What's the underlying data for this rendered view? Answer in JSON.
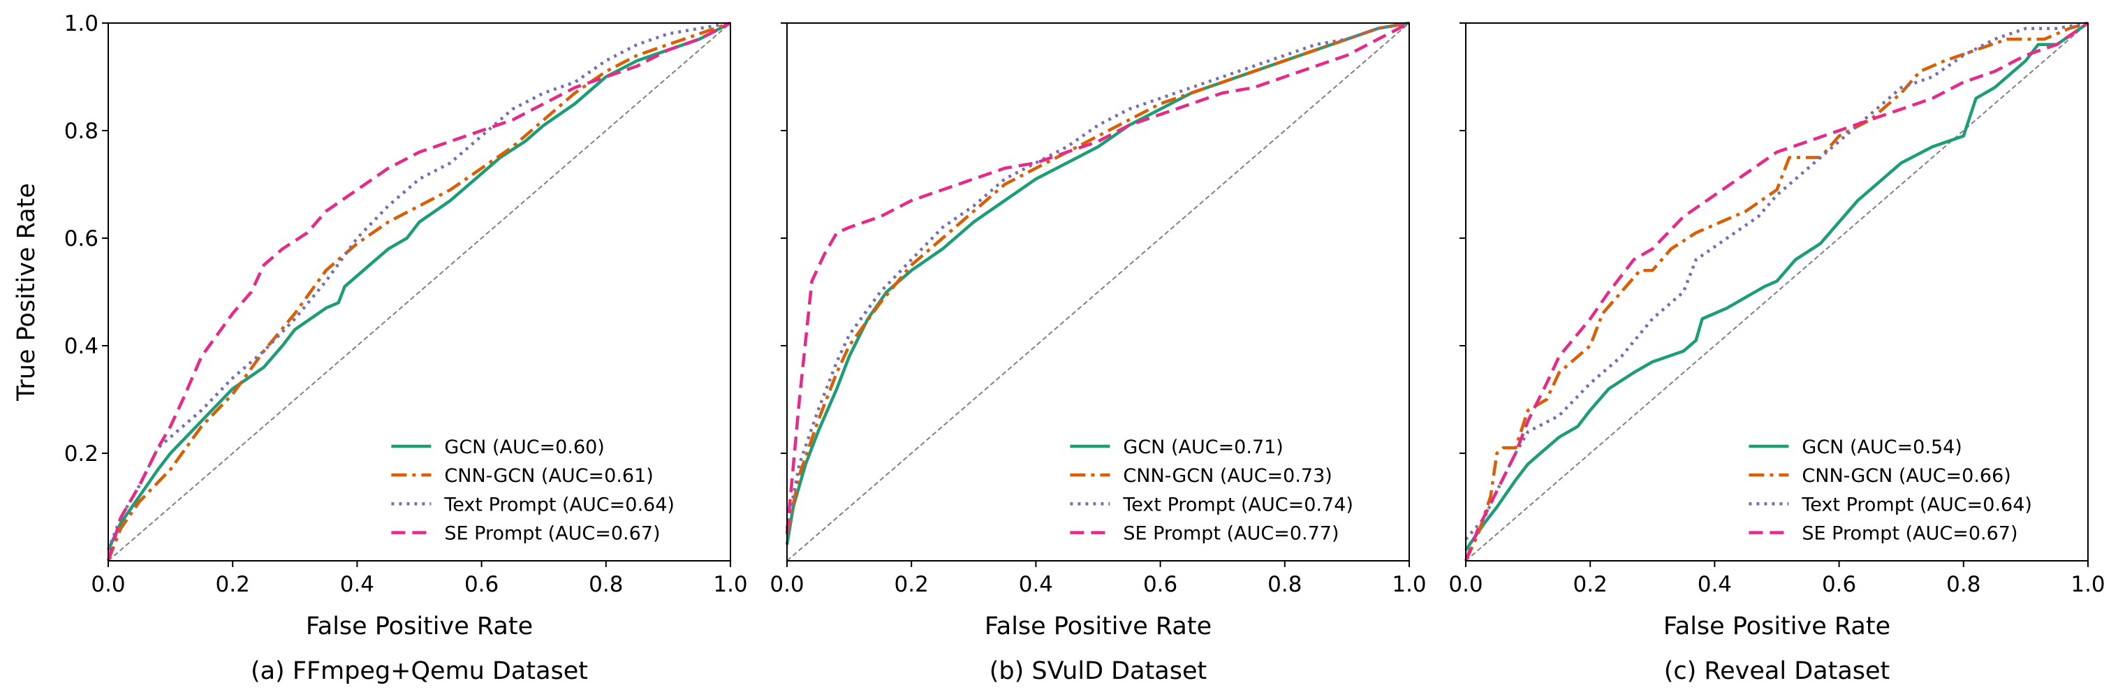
{
  "chart_data": [
    {
      "type": "line",
      "caption": "(a) FFmpeg+Qemu Dataset",
      "xlabel": "False Positive Rate",
      "ylabel": "True Positive Rate",
      "xlim": [
        0,
        1
      ],
      "ylim": [
        0,
        1
      ],
      "xticks": [
        "0.0",
        "0.2",
        "0.4",
        "0.6",
        "0.8",
        "1.0"
      ],
      "yticks": [
        "0.2",
        "0.4",
        "0.6",
        "0.8",
        "1.0"
      ],
      "show_ytick_labels": true,
      "legend_position": "lower-right",
      "series": [
        {
          "name": "GCN (AUC=0.60)",
          "color": "#1b9e77",
          "style": "solid",
          "x": [
            0,
            0.02,
            0.05,
            0.08,
            0.1,
            0.15,
            0.2,
            0.25,
            0.28,
            0.3,
            0.35,
            0.37,
            0.38,
            0.42,
            0.45,
            0.48,
            0.5,
            0.55,
            0.6,
            0.63,
            0.67,
            0.7,
            0.75,
            0.8,
            0.85,
            0.9,
            0.95,
            1
          ],
          "y": [
            0.02,
            0.07,
            0.12,
            0.17,
            0.2,
            0.26,
            0.32,
            0.36,
            0.4,
            0.43,
            0.47,
            0.48,
            0.51,
            0.55,
            0.58,
            0.6,
            0.63,
            0.67,
            0.72,
            0.75,
            0.78,
            0.81,
            0.85,
            0.9,
            0.93,
            0.95,
            0.97,
            1
          ]
        },
        {
          "name": "CNN-GCN (AUC=0.61)",
          "color": "#d95f02",
          "style": "dashdot",
          "x": [
            0,
            0.02,
            0.05,
            0.1,
            0.15,
            0.2,
            0.25,
            0.3,
            0.35,
            0.4,
            0.45,
            0.5,
            0.55,
            0.6,
            0.65,
            0.7,
            0.75,
            0.8,
            0.85,
            0.9,
            0.95,
            1
          ],
          "y": [
            0,
            0.06,
            0.11,
            0.17,
            0.25,
            0.31,
            0.39,
            0.46,
            0.54,
            0.59,
            0.63,
            0.66,
            0.69,
            0.73,
            0.77,
            0.82,
            0.87,
            0.91,
            0.94,
            0.96,
            0.98,
            1
          ]
        },
        {
          "name": "Text Prompt (AUC=0.64)",
          "color": "#7570b3",
          "style": "dotted",
          "x": [
            0,
            0.02,
            0.05,
            0.08,
            0.1,
            0.15,
            0.2,
            0.25,
            0.3,
            0.35,
            0.4,
            0.45,
            0.5,
            0.55,
            0.6,
            0.65,
            0.7,
            0.75,
            0.8,
            0.85,
            0.9,
            0.95,
            1
          ],
          "y": [
            0.02,
            0.08,
            0.14,
            0.21,
            0.23,
            0.28,
            0.34,
            0.39,
            0.45,
            0.52,
            0.6,
            0.66,
            0.71,
            0.74,
            0.79,
            0.84,
            0.87,
            0.89,
            0.93,
            0.96,
            0.98,
            0.99,
            1
          ]
        },
        {
          "name": "SE Prompt (AUC=0.67)",
          "color": "#e7298a",
          "style": "dashed",
          "x": [
            0,
            0.02,
            0.05,
            0.08,
            0.1,
            0.12,
            0.15,
            0.2,
            0.23,
            0.25,
            0.28,
            0.32,
            0.35,
            0.4,
            0.45,
            0.5,
            0.55,
            0.6,
            0.65,
            0.7,
            0.75,
            0.8,
            0.85,
            0.9,
            0.95,
            1
          ],
          "y": [
            0,
            0.08,
            0.14,
            0.21,
            0.25,
            0.3,
            0.38,
            0.46,
            0.5,
            0.55,
            0.58,
            0.61,
            0.65,
            0.69,
            0.73,
            0.76,
            0.78,
            0.8,
            0.82,
            0.85,
            0.88,
            0.9,
            0.92,
            0.95,
            0.97,
            1
          ]
        }
      ]
    },
    {
      "type": "line",
      "caption": "(b) SVulD Dataset",
      "xlabel": "False Positive Rate",
      "xlim": [
        0,
        1
      ],
      "ylim": [
        0,
        1
      ],
      "xticks": [
        "0.0",
        "0.2",
        "0.4",
        "0.6",
        "0.8",
        "1.0"
      ],
      "show_ytick_labels": false,
      "legend_position": "lower-right",
      "series": [
        {
          "name": "GCN (AUC=0.71)",
          "color": "#1b9e77",
          "style": "solid",
          "x": [
            0,
            0.01,
            0.03,
            0.05,
            0.08,
            0.1,
            0.13,
            0.16,
            0.2,
            0.25,
            0.3,
            0.35,
            0.4,
            0.45,
            0.5,
            0.55,
            0.6,
            0.65,
            0.7,
            0.75,
            0.8,
            0.85,
            0.9,
            0.95,
            1
          ],
          "y": [
            0.03,
            0.1,
            0.18,
            0.24,
            0.32,
            0.38,
            0.45,
            0.5,
            0.54,
            0.58,
            0.63,
            0.67,
            0.71,
            0.74,
            0.77,
            0.81,
            0.84,
            0.87,
            0.89,
            0.91,
            0.93,
            0.95,
            0.97,
            0.99,
            1
          ]
        },
        {
          "name": "CNN-GCN (AUC=0.73)",
          "color": "#d95f02",
          "style": "dashdot",
          "x": [
            0,
            0.02,
            0.05,
            0.08,
            0.1,
            0.15,
            0.2,
            0.25,
            0.3,
            0.35,
            0.4,
            0.45,
            0.5,
            0.55,
            0.6,
            0.65,
            0.7,
            0.75,
            0.8,
            0.85,
            0.9,
            0.95,
            1
          ],
          "y": [
            0.05,
            0.16,
            0.26,
            0.35,
            0.4,
            0.48,
            0.55,
            0.6,
            0.65,
            0.7,
            0.73,
            0.76,
            0.79,
            0.82,
            0.85,
            0.87,
            0.89,
            0.91,
            0.93,
            0.95,
            0.97,
            0.99,
            1
          ]
        },
        {
          "name": "Text Prompt (AUC=0.74)",
          "color": "#7570b3",
          "style": "dotted",
          "x": [
            0,
            0.02,
            0.05,
            0.08,
            0.1,
            0.15,
            0.2,
            0.25,
            0.3,
            0.35,
            0.4,
            0.45,
            0.5,
            0.55,
            0.6,
            0.65,
            0.7,
            0.75,
            0.8,
            0.85,
            0.9,
            0.95,
            1
          ],
          "y": [
            0.06,
            0.18,
            0.28,
            0.37,
            0.42,
            0.5,
            0.56,
            0.62,
            0.66,
            0.71,
            0.74,
            0.77,
            0.81,
            0.84,
            0.86,
            0.88,
            0.9,
            0.92,
            0.94,
            0.96,
            0.97,
            0.99,
            1
          ]
        },
        {
          "name": "SE Prompt (AUC=0.77)",
          "color": "#e7298a",
          "style": "dashed",
          "x": [
            0,
            0.02,
            0.04,
            0.06,
            0.08,
            0.1,
            0.15,
            0.2,
            0.25,
            0.3,
            0.35,
            0.4,
            0.45,
            0.5,
            0.55,
            0.6,
            0.65,
            0.7,
            0.75,
            0.8,
            0.85,
            0.9,
            0.95,
            1
          ],
          "y": [
            0.05,
            0.3,
            0.52,
            0.57,
            0.61,
            0.62,
            0.64,
            0.67,
            0.69,
            0.71,
            0.73,
            0.74,
            0.76,
            0.78,
            0.81,
            0.83,
            0.85,
            0.87,
            0.88,
            0.9,
            0.92,
            0.94,
            0.97,
            1
          ]
        }
      ]
    },
    {
      "type": "line",
      "caption": "(c) Reveal Dataset",
      "xlabel": "False Positive Rate",
      "xlim": [
        0,
        1
      ],
      "ylim": [
        0,
        1
      ],
      "xticks": [
        "0.0",
        "0.2",
        "0.4",
        "0.6",
        "0.8",
        "1.0"
      ],
      "show_ytick_labels": false,
      "legend_position": "lower-right",
      "series": [
        {
          "name": "GCN (AUC=0.54)",
          "color": "#1b9e77",
          "style": "solid",
          "x": [
            0,
            0.03,
            0.05,
            0.08,
            0.1,
            0.12,
            0.15,
            0.18,
            0.2,
            0.23,
            0.27,
            0.3,
            0.35,
            0.37,
            0.38,
            0.42,
            0.45,
            0.48,
            0.5,
            0.53,
            0.57,
            0.6,
            0.63,
            0.67,
            0.7,
            0.75,
            0.8,
            0.82,
            0.85,
            0.9,
            0.92,
            0.95,
            1
          ],
          "y": [
            0.02,
            0.07,
            0.1,
            0.15,
            0.18,
            0.2,
            0.23,
            0.25,
            0.28,
            0.32,
            0.35,
            0.37,
            0.39,
            0.41,
            0.45,
            0.47,
            0.49,
            0.51,
            0.52,
            0.56,
            0.59,
            0.63,
            0.67,
            0.71,
            0.74,
            0.77,
            0.79,
            0.86,
            0.88,
            0.93,
            0.96,
            0.96,
            1
          ]
        },
        {
          "name": "CNN-GCN (AUC=0.66)",
          "color": "#d95f02",
          "style": "dashdot",
          "x": [
            0,
            0.02,
            0.04,
            0.05,
            0.06,
            0.08,
            0.1,
            0.13,
            0.15,
            0.18,
            0.2,
            0.22,
            0.25,
            0.28,
            0.3,
            0.33,
            0.37,
            0.45,
            0.5,
            0.52,
            0.57,
            0.6,
            0.65,
            0.7,
            0.73,
            0.77,
            0.82,
            0.87,
            0.93,
            0.97,
            1
          ],
          "y": [
            0,
            0.05,
            0.12,
            0.2,
            0.21,
            0.21,
            0.28,
            0.3,
            0.35,
            0.38,
            0.4,
            0.46,
            0.5,
            0.54,
            0.54,
            0.58,
            0.61,
            0.65,
            0.69,
            0.75,
            0.75,
            0.79,
            0.82,
            0.87,
            0.91,
            0.93,
            0.95,
            0.97,
            0.97,
            0.99,
            1
          ]
        },
        {
          "name": "Text Prompt (AUC=0.64)",
          "color": "#7570b3",
          "style": "dotted",
          "x": [
            0,
            0.03,
            0.05,
            0.08,
            0.1,
            0.15,
            0.2,
            0.25,
            0.3,
            0.35,
            0.37,
            0.42,
            0.47,
            0.5,
            0.55,
            0.6,
            0.65,
            0.7,
            0.75,
            0.8,
            0.85,
            0.9,
            0.95,
            1
          ],
          "y": [
            0.04,
            0.08,
            0.13,
            0.2,
            0.24,
            0.27,
            0.33,
            0.38,
            0.45,
            0.5,
            0.56,
            0.6,
            0.64,
            0.68,
            0.73,
            0.78,
            0.83,
            0.88,
            0.9,
            0.94,
            0.97,
            0.99,
            0.99,
            1
          ]
        },
        {
          "name": "SE Prompt (AUC=0.67)",
          "color": "#e7298a",
          "style": "dashed",
          "x": [
            0,
            0.02,
            0.05,
            0.08,
            0.1,
            0.13,
            0.15,
            0.2,
            0.23,
            0.27,
            0.3,
            0.35,
            0.4,
            0.45,
            0.5,
            0.55,
            0.6,
            0.65,
            0.7,
            0.75,
            0.8,
            0.85,
            0.9,
            0.95,
            1
          ],
          "y": [
            0,
            0.06,
            0.13,
            0.2,
            0.26,
            0.33,
            0.38,
            0.45,
            0.5,
            0.56,
            0.58,
            0.64,
            0.68,
            0.72,
            0.76,
            0.78,
            0.8,
            0.82,
            0.84,
            0.86,
            0.89,
            0.91,
            0.94,
            0.96,
            1
          ]
        }
      ]
    }
  ]
}
